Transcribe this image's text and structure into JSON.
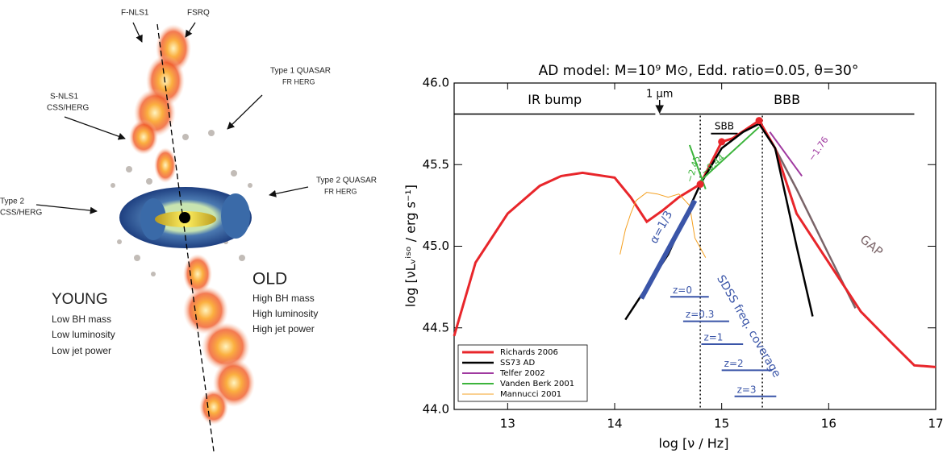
{
  "illustration": {
    "labels": [
      "F-NLS1",
      "FSRQ",
      "Type 1 QUASAR",
      "FR HERG",
      "S-NLS1",
      "CSS/HERG",
      "Type 2 QUASAR",
      "FR HERG",
      "Type 2",
      "CSS/HERG",
      "YOUNG",
      "Low BH mass",
      "Low luminosity",
      "Low jet power",
      "OLD",
      "High BH mass",
      "High luminosity",
      "High jet power"
    ]
  },
  "chart_data": {
    "type": "line",
    "title": "AD model: M=10⁹ M⊙, Edd. ratio=0.05, θ=30°",
    "x_label": "log [ν / Hz]",
    "y_label": "log [νLᵥⁱˢᵒ / erg s⁻¹]",
    "xlim": [
      12.5,
      17
    ],
    "xticks": [
      13,
      14,
      15,
      16,
      17
    ],
    "ylim": [
      44.0,
      46.0
    ],
    "yticks": [
      {
        "value": 44.0,
        "label": "44.0"
      },
      {
        "value": 44.5,
        "label": "44.5"
      },
      {
        "value": 45.0,
        "label": "45.0"
      },
      {
        "value": 45.5,
        "label": "45.5"
      },
      {
        "value": 46.0,
        "label": "46.0"
      }
    ],
    "legend": "lower left",
    "series": [
      {
        "name": "Richards 2006",
        "color": "#e8262b",
        "line_width": 3,
        "x": [
          12.5,
          12.7,
          13.0,
          13.3,
          13.5,
          13.7,
          14.0,
          14.15,
          14.3,
          14.45,
          14.6,
          14.8,
          15.0,
          15.1,
          15.35,
          15.5,
          15.7,
          16.0,
          16.3,
          16.6,
          16.8,
          17.0
        ],
        "values": [
          44.45,
          44.9,
          45.2,
          45.37,
          45.43,
          45.45,
          45.42,
          45.3,
          45.15,
          45.22,
          45.3,
          45.38,
          45.64,
          45.66,
          45.77,
          45.6,
          45.2,
          44.9,
          44.6,
          44.4,
          44.27,
          44.26
        ]
      },
      {
        "name": "SS73 AD",
        "color": "#000000",
        "line_width": 2.5,
        "x": [
          14.1,
          14.5,
          14.8,
          15.0,
          15.2,
          15.35,
          15.5,
          15.7,
          15.85
        ],
        "values": [
          44.55,
          44.95,
          45.38,
          45.6,
          45.7,
          45.75,
          45.6,
          45.0,
          44.57
        ]
      },
      {
        "name": "Telfer 2002",
        "color": "#a03aa0",
        "line_width": 2,
        "x": [
          15.45,
          15.75
        ],
        "values": [
          45.7,
          45.43
        ]
      },
      {
        "name": "Vanden Berk 2001",
        "color": "#3cb43c",
        "line_width": 2,
        "x": [
          14.7,
          14.85,
          null,
          14.8,
          15.35
        ],
        "values": [
          45.62,
          45.35,
          null,
          45.4,
          45.73
        ]
      },
      {
        "name": "Mannucci 2001",
        "color": "#f5a020",
        "line_width": 1,
        "x": [
          14.05,
          14.1,
          14.15,
          14.2,
          14.3,
          14.4,
          14.5,
          14.6,
          14.7,
          14.75,
          14.85
        ],
        "values": [
          44.95,
          45.1,
          45.2,
          45.28,
          45.33,
          45.32,
          45.3,
          45.32,
          45.25,
          45.05,
          44.93
        ]
      }
    ],
    "gap_line": {
      "label": "GAP",
      "color": "#7a6468",
      "x": [
        15.35,
        15.5,
        15.7,
        16.0,
        16.25
      ],
      "values": [
        45.75,
        45.6,
        45.35,
        44.95,
        44.62
      ]
    },
    "slope_line": {
      "label": "α=1/3",
      "color": "#3a55a8",
      "x": [
        14.25,
        14.75
      ],
      "values": [
        44.68,
        45.28
      ]
    },
    "points": {
      "color": "#e8262b",
      "x": [
        14.8,
        15.0,
        15.35
      ],
      "values": [
        45.38,
        45.64,
        45.77
      ]
    },
    "slope_labels": [
      "−2.45",
      "−0.44",
      "−1.76"
    ],
    "bands": [
      {
        "label": "IR bump",
        "x": [
          12.5,
          14.38
        ],
        "y": 45.81
      },
      {
        "label": "BBB",
        "x": [
          14.42,
          16.8
        ],
        "y": 45.81
      },
      {
        "label": "SBB",
        "x": [
          14.9,
          15.15
        ],
        "y": 45.69
      }
    ],
    "marker_1um": {
      "label": "1 μm",
      "x": 14.42
    },
    "vlines": [
      14.8,
      15.38
    ],
    "sdss": {
      "label": "SDSS freq. coverage",
      "color": "#3a55a8",
      "lines": [
        {
          "label": "z=0",
          "x": [
            14.52,
            14.88
          ],
          "y": 44.69
        },
        {
          "label": "z=0.3",
          "x": [
            14.64,
            15.07
          ],
          "y": 44.54
        },
        {
          "label": "z=1",
          "x": [
            14.81,
            15.2
          ],
          "y": 44.4
        },
        {
          "label": "z=2",
          "x": [
            15.0,
            15.47
          ],
          "y": 44.24
        },
        {
          "label": "z=3",
          "x": [
            15.12,
            15.51
          ],
          "y": 44.08
        }
      ]
    }
  }
}
